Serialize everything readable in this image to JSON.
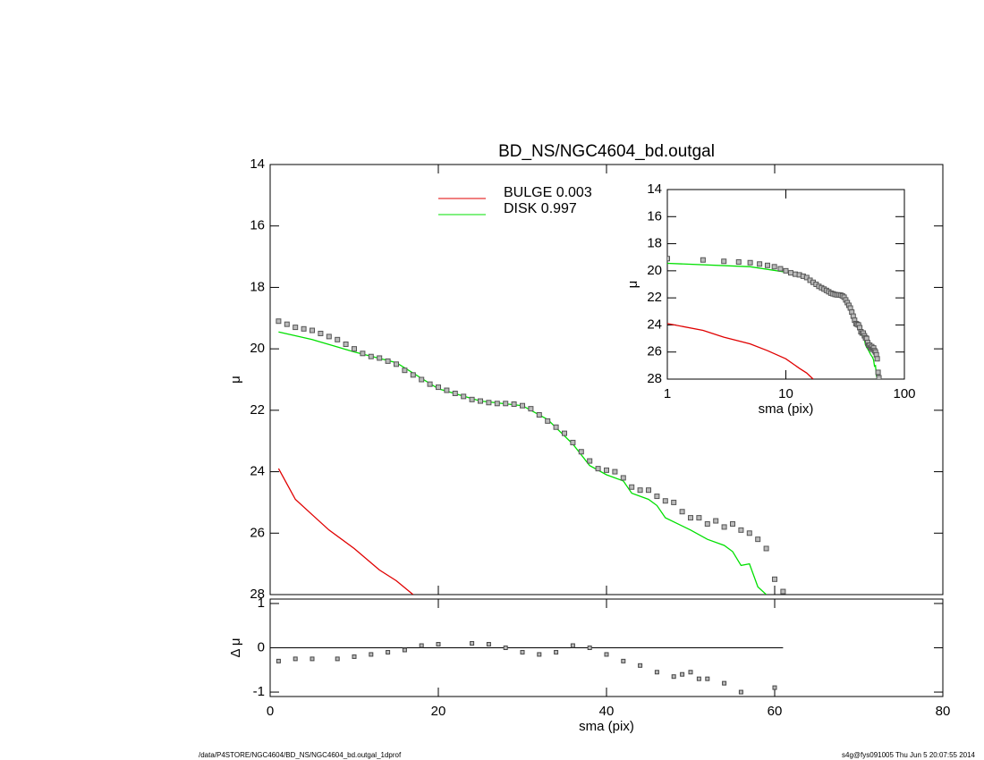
{
  "chart_data": [
    {
      "type": "line",
      "title": "BD_NS/NGC4604_bd.outgal",
      "ylabel": "μ",
      "xlim": [
        0,
        80
      ],
      "xticks": [
        0,
        20,
        40,
        60,
        80
      ],
      "ylim": [
        28,
        14
      ],
      "yticks": [
        14,
        16,
        18,
        20,
        22,
        24,
        26,
        28
      ],
      "points": {
        "color": "#555555",
        "x": [
          1,
          2,
          3,
          4,
          5,
          6,
          7,
          8,
          9,
          10,
          11,
          12,
          13,
          14,
          15,
          16,
          17,
          18,
          19,
          20,
          21,
          22,
          23,
          24,
          25,
          26,
          27,
          28,
          29,
          30,
          31,
          32,
          33,
          34,
          35,
          36,
          37,
          38,
          39,
          40,
          41,
          42,
          43,
          44,
          45,
          46,
          47,
          48,
          49,
          50,
          51,
          52,
          53,
          54,
          55,
          56,
          57,
          58,
          59,
          60,
          61
        ],
        "values": [
          19.1,
          19.2,
          19.3,
          19.35,
          19.4,
          19.5,
          19.6,
          19.7,
          19.85,
          20.0,
          20.15,
          20.25,
          20.3,
          20.4,
          20.5,
          20.7,
          20.85,
          21.0,
          21.15,
          21.25,
          21.35,
          21.45,
          21.55,
          21.65,
          21.7,
          21.75,
          21.78,
          21.78,
          21.8,
          21.85,
          21.95,
          22.15,
          22.35,
          22.55,
          22.75,
          23.05,
          23.35,
          23.65,
          23.9,
          23.95,
          24.0,
          24.2,
          24.5,
          24.6,
          24.6,
          24.8,
          24.95,
          25.0,
          25.3,
          25.5,
          25.5,
          25.7,
          25.6,
          25.8,
          25.7,
          25.9,
          26.0,
          26.2,
          26.5,
          27.5,
          27.9
        ]
      },
      "series": [
        {
          "name": "BULGE  0.003",
          "color": "#e00000",
          "x": [
            1,
            2,
            3,
            5,
            7,
            10,
            13,
            15,
            17
          ],
          "values": [
            23.9,
            24.4,
            24.9,
            25.4,
            25.9,
            26.5,
            27.2,
            27.55,
            28.0
          ]
        },
        {
          "name": "DISK  0.997",
          "color": "#00e000",
          "x": [
            1,
            5,
            10,
            15,
            20,
            25,
            30,
            33,
            36,
            38,
            40,
            42,
            43,
            45,
            46,
            47,
            50,
            52,
            54,
            55,
            56,
            57,
            58,
            59
          ],
          "values": [
            19.45,
            19.7,
            20.1,
            20.45,
            21.3,
            21.7,
            21.85,
            22.3,
            23.1,
            23.8,
            24.1,
            24.3,
            24.7,
            24.9,
            25.1,
            25.5,
            25.9,
            26.2,
            26.4,
            26.6,
            27.05,
            27.0,
            27.75,
            28.0
          ]
        }
      ]
    },
    {
      "type": "inset",
      "xlabel": "sma (pix)",
      "ylabel": "μ",
      "log_x": true,
      "xlim": [
        1,
        100
      ],
      "xticks": [
        1,
        10,
        100
      ],
      "ylim": [
        28,
        14
      ],
      "yticks": [
        14,
        16,
        18,
        20,
        22,
        24,
        26,
        28
      ]
    },
    {
      "type": "residual",
      "xlabel": "sma (pix)",
      "ylabel": "Δ μ",
      "xlim": [
        0,
        80
      ],
      "xticks": [
        0,
        20,
        40,
        60,
        80
      ],
      "ylim": [
        -1.1,
        1.1
      ],
      "yticks": [
        -1,
        0,
        1
      ],
      "x": [
        1,
        3,
        5,
        8,
        10,
        12,
        14,
        16,
        18,
        20,
        24,
        26,
        28,
        30,
        32,
        34,
        36,
        38,
        40,
        42,
        44,
        46,
        48,
        49,
        50,
        51,
        52,
        54,
        56,
        60
      ],
      "values": [
        -0.3,
        -0.25,
        -0.25,
        -0.25,
        -0.2,
        -0.15,
        -0.1,
        -0.05,
        0.05,
        0.08,
        0.1,
        0.08,
        0.0,
        -0.1,
        -0.15,
        -0.1,
        0.05,
        0.0,
        -0.15,
        -0.3,
        -0.4,
        -0.55,
        -0.65,
        -0.6,
        -0.55,
        -0.7,
        -0.7,
        -0.8,
        -1.0,
        -0.9
      ]
    }
  ],
  "footer": {
    "left": "/data/P4STORE/NGC4604/BD_NS/NGC4604_bd.outgal_1dprof",
    "right": "s4g@fys091005  Thu Jun  5 20:07:55 2014"
  }
}
